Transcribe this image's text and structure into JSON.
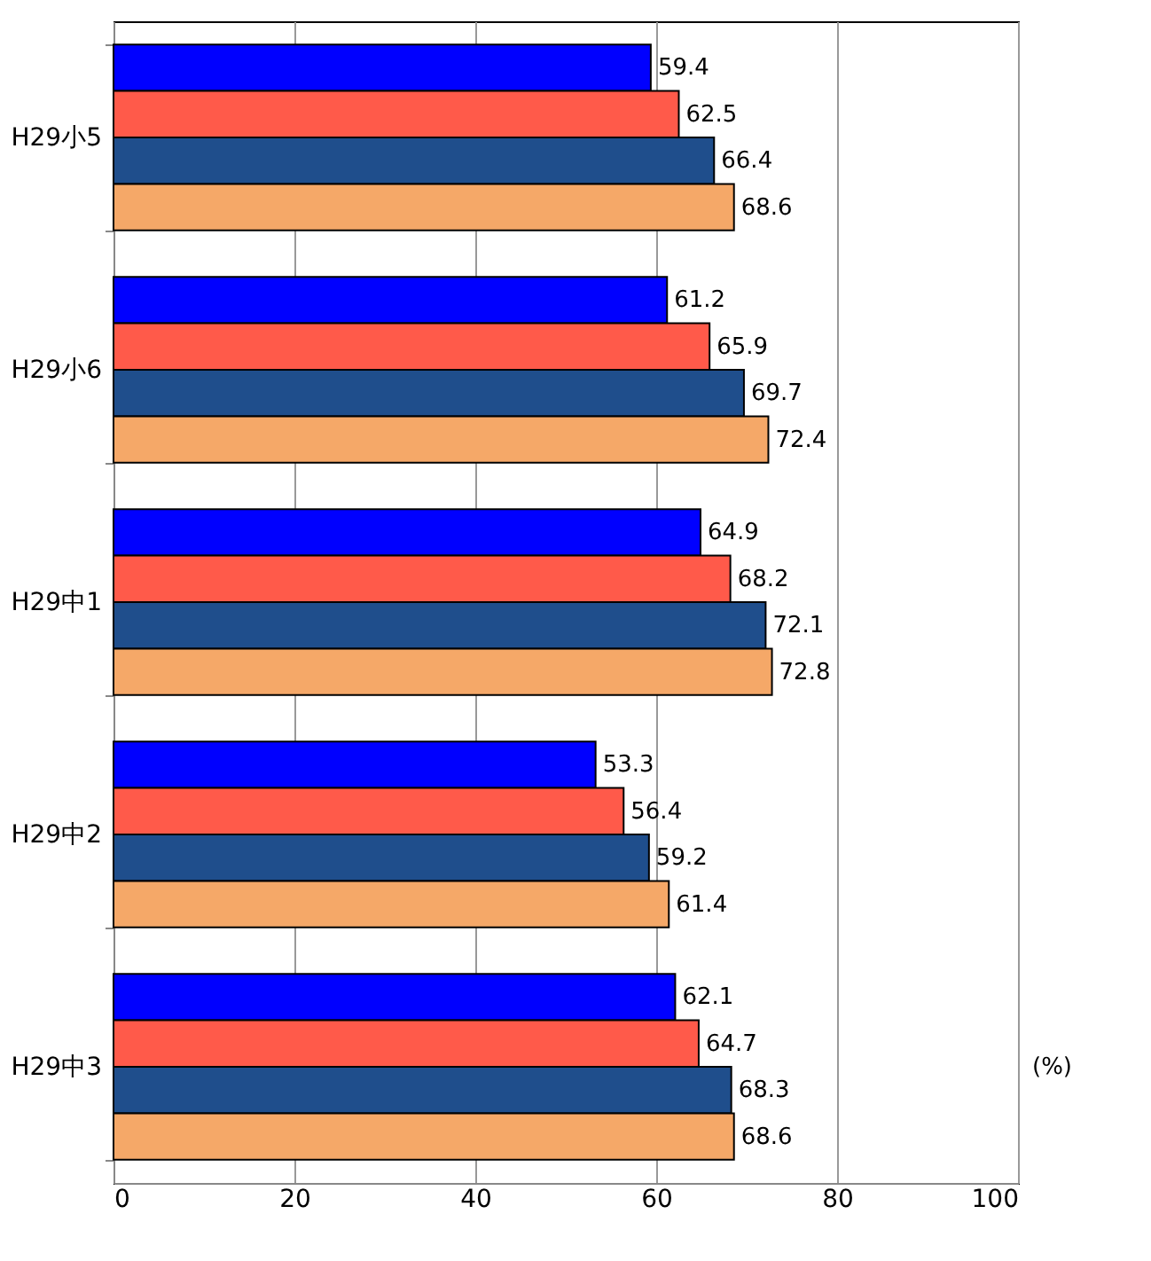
{
  "chart_data": {
    "type": "bar",
    "orientation": "horizontal",
    "categories": [
      "H29小5",
      "H29小6",
      "H29中1",
      "H29中2",
      "H29中3"
    ],
    "series": [
      {
        "color": "#0000ff",
        "values": [
          59.4,
          61.2,
          64.9,
          53.3,
          62.1
        ]
      },
      {
        "color": "#ff5a4a",
        "values": [
          62.5,
          65.9,
          68.2,
          56.4,
          64.7
        ]
      },
      {
        "color": "#1f4e8c",
        "values": [
          66.4,
          69.7,
          72.1,
          59.2,
          68.3
        ]
      },
      {
        "color": "#f5a868",
        "values": [
          68.6,
          72.4,
          72.8,
          61.4,
          68.6
        ]
      }
    ],
    "xlim": [
      0,
      100
    ],
    "xticks": [
      0,
      20,
      40,
      60,
      80,
      100
    ],
    "grid": "x",
    "data_labels": true,
    "legend": false,
    "annotations": [
      "(%)"
    ]
  }
}
